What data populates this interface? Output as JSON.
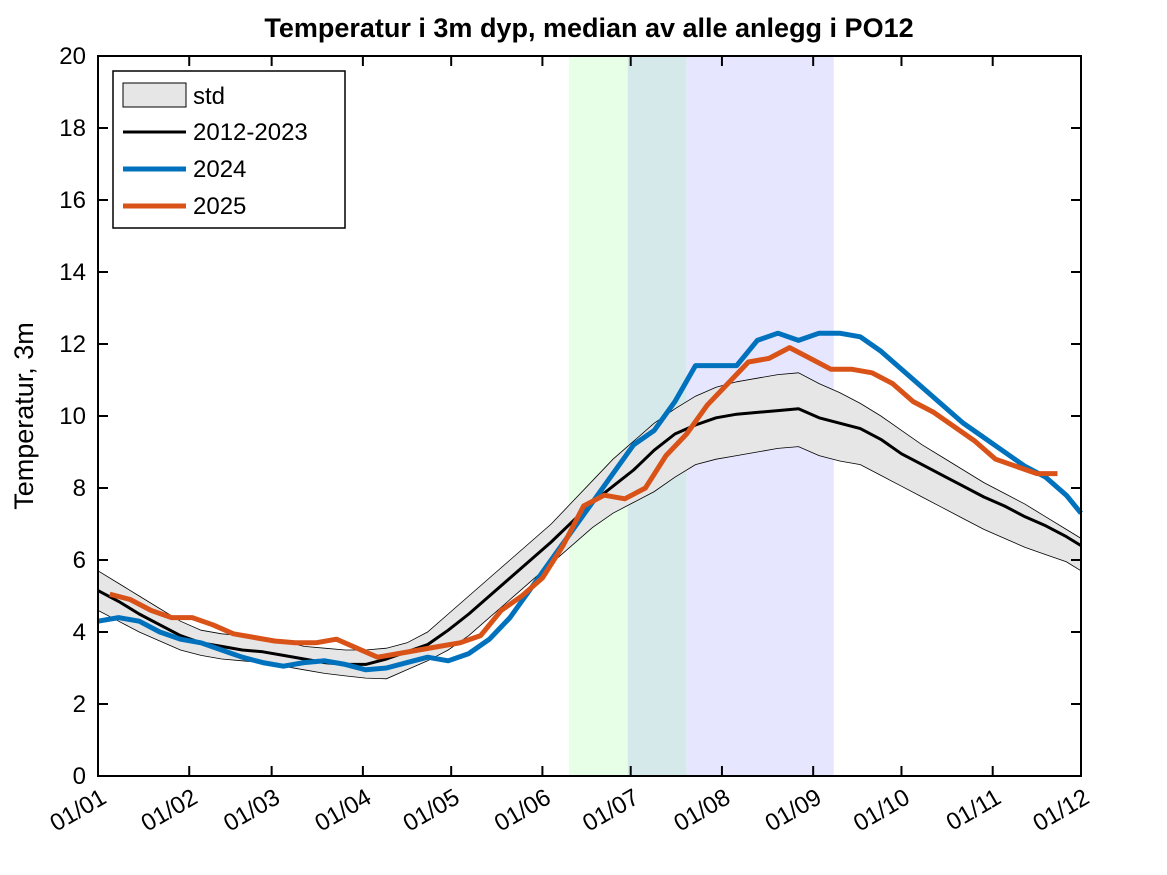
{
  "chart_data": {
    "type": "line",
    "title": "Temperatur i 3m dyp, median av alle anlegg i PO12",
    "xlabel": "",
    "ylabel": "Temperatur, 3m",
    "ylim": [
      0,
      20
    ],
    "yticks": [
      0,
      2,
      4,
      6,
      8,
      10,
      12,
      14,
      16,
      18,
      20
    ],
    "xlim": [
      0,
      334
    ],
    "xticks": [
      {
        "day": 0,
        "label": "01/01"
      },
      {
        "day": 31,
        "label": "01/02"
      },
      {
        "day": 59,
        "label": "01/03"
      },
      {
        "day": 90,
        "label": "01/04"
      },
      {
        "day": 120,
        "label": "01/05"
      },
      {
        "day": 151,
        "label": "01/06"
      },
      {
        "day": 181,
        "label": "01/07"
      },
      {
        "day": 212,
        "label": "01/08"
      },
      {
        "day": 243,
        "label": "01/09"
      },
      {
        "day": 273,
        "label": "01/10"
      },
      {
        "day": 304,
        "label": "01/11"
      },
      {
        "day": 334,
        "label": "01/12"
      }
    ],
    "grid": false,
    "legend_position": "top-left",
    "shaded_periods": [
      {
        "from": 160,
        "to": 200,
        "color": "#e6ffe6"
      },
      {
        "from": 180,
        "to": 200,
        "color": "#d6e9ea"
      },
      {
        "from": 200,
        "to": 250,
        "color": "#e6e6ff"
      }
    ],
    "band": {
      "name": "std",
      "x": [
        0,
        7,
        14,
        21,
        28,
        35,
        42,
        49,
        56,
        63,
        70,
        77,
        84,
        91,
        98,
        105,
        112,
        119,
        126,
        133,
        140,
        147,
        154,
        161,
        168,
        175,
        182,
        189,
        196,
        203,
        210,
        217,
        224,
        231,
        238,
        245,
        252,
        259,
        266,
        273,
        280,
        287,
        294,
        301,
        308,
        315,
        322,
        329,
        334
      ],
      "upper": [
        5.7,
        5.35,
        5.0,
        4.65,
        4.3,
        4.05,
        3.95,
        3.9,
        3.85,
        3.75,
        3.6,
        3.55,
        3.5,
        3.5,
        3.55,
        3.7,
        4.0,
        4.5,
        5.0,
        5.5,
        6.0,
        6.5,
        7.0,
        7.6,
        8.2,
        8.8,
        9.3,
        9.8,
        10.2,
        10.55,
        10.8,
        10.95,
        11.05,
        11.15,
        11.2,
        10.9,
        10.65,
        10.35,
        10.0,
        9.6,
        9.2,
        8.85,
        8.5,
        8.15,
        7.85,
        7.55,
        7.2,
        6.85,
        6.6
      ],
      "lower": [
        4.6,
        4.3,
        4.0,
        3.75,
        3.5,
        3.35,
        3.25,
        3.2,
        3.15,
        3.05,
        2.95,
        2.85,
        2.78,
        2.72,
        2.7,
        2.95,
        3.2,
        3.5,
        3.9,
        4.4,
        4.9,
        5.4,
        5.9,
        6.4,
        6.9,
        7.3,
        7.6,
        7.9,
        8.3,
        8.65,
        8.8,
        8.9,
        9.0,
        9.1,
        9.15,
        8.9,
        8.75,
        8.65,
        8.35,
        8.05,
        7.75,
        7.45,
        7.15,
        6.85,
        6.6,
        6.35,
        6.15,
        5.95,
        5.7
      ]
    },
    "series": [
      {
        "name": "2012-2023",
        "color": "#000000",
        "x": [
          0,
          7,
          14,
          21,
          28,
          35,
          42,
          49,
          56,
          63,
          70,
          77,
          84,
          91,
          98,
          105,
          112,
          119,
          126,
          133,
          140,
          147,
          154,
          161,
          168,
          175,
          182,
          189,
          196,
          203,
          210,
          217,
          224,
          231,
          238,
          245,
          252,
          259,
          266,
          273,
          280,
          287,
          294,
          301,
          308,
          315,
          322,
          329,
          334
        ],
        "y": [
          5.15,
          4.85,
          4.5,
          4.2,
          3.9,
          3.7,
          3.6,
          3.5,
          3.45,
          3.35,
          3.25,
          3.15,
          3.1,
          3.1,
          3.25,
          3.45,
          3.65,
          4.05,
          4.5,
          5.0,
          5.5,
          6.0,
          6.5,
          7.05,
          7.6,
          8.05,
          8.5,
          9.05,
          9.5,
          9.75,
          9.95,
          10.05,
          10.1,
          10.15,
          10.2,
          9.95,
          9.8,
          9.65,
          9.35,
          8.95,
          8.65,
          8.35,
          8.05,
          7.75,
          7.5,
          7.2,
          6.95,
          6.65,
          6.4
        ]
      },
      {
        "name": "2024",
        "color": "#0072bd",
        "x": [
          0,
          7,
          14,
          21,
          28,
          35,
          42,
          49,
          56,
          63,
          70,
          77,
          84,
          91,
          98,
          105,
          112,
          119,
          126,
          133,
          140,
          147,
          154,
          161,
          168,
          175,
          182,
          189,
          196,
          203,
          210,
          217,
          224,
          231,
          238,
          245,
          252,
          259,
          266,
          273,
          280,
          287,
          294,
          301,
          308,
          315,
          322,
          329,
          334
        ],
        "y": [
          4.3,
          4.4,
          4.3,
          4.0,
          3.8,
          3.7,
          3.5,
          3.3,
          3.15,
          3.05,
          3.15,
          3.2,
          3.1,
          2.95,
          3.0,
          3.15,
          3.3,
          3.2,
          3.4,
          3.8,
          4.4,
          5.2,
          6.0,
          6.8,
          7.6,
          8.4,
          9.2,
          9.6,
          10.4,
          11.4,
          11.4,
          11.4,
          12.1,
          12.3,
          12.1,
          12.3,
          12.3,
          12.2,
          11.8,
          11.3,
          10.8,
          10.3,
          9.8,
          9.4,
          9.0,
          8.6,
          8.3,
          7.8,
          7.3
        ]
      },
      {
        "name": "2025",
        "color": "#d95319",
        "x": [
          4,
          11,
          18,
          25,
          32,
          39,
          46,
          53,
          60,
          67,
          74,
          81,
          88,
          95,
          102,
          109,
          116,
          123,
          130,
          137,
          144,
          151,
          158,
          165,
          172,
          179,
          186,
          193,
          200,
          207,
          214,
          221,
          228,
          235,
          242,
          249,
          256,
          263,
          270,
          277,
          284,
          291,
          298,
          305,
          312,
          319,
          326
        ],
        "y": [
          5.05,
          4.9,
          4.6,
          4.4,
          4.4,
          4.2,
          3.95,
          3.85,
          3.75,
          3.7,
          3.7,
          3.8,
          3.55,
          3.3,
          3.4,
          3.5,
          3.6,
          3.7,
          3.9,
          4.6,
          5.0,
          5.5,
          6.4,
          7.5,
          7.8,
          7.7,
          8.0,
          8.9,
          9.5,
          10.3,
          10.9,
          11.5,
          11.6,
          11.9,
          11.6,
          11.3,
          11.3,
          11.2,
          10.9,
          10.4,
          10.1,
          9.7,
          9.3,
          8.8,
          8.6,
          8.4,
          8.4
        ]
      }
    ]
  }
}
